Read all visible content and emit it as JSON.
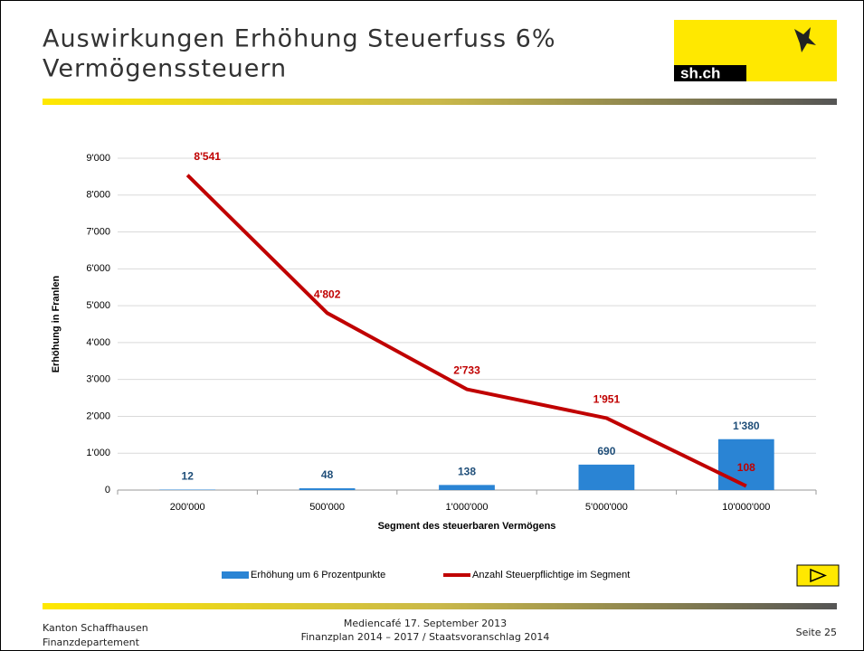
{
  "header": {
    "title_lines": [
      "Auswirkungen Erhöhung Steuerfuss 6%",
      "Vermögenssteuern"
    ],
    "logo": "sh.ch"
  },
  "chart_data": {
    "type": "bar",
    "y_label": "Erhöhung in Franlen",
    "x_label": "Segment des steuerbaren Vermögens",
    "categories": [
      "200'000",
      "500'000",
      "1'000'000",
      "5'000'000",
      "10'000'000"
    ],
    "series": [
      {
        "name": "Erhöhung um 6 Prozentpunkte",
        "type": "bar",
        "color": "#2a84d4",
        "label_color": "#1f4e79",
        "values": [
          12,
          48,
          138,
          690,
          1380
        ],
        "value_labels": [
          "12",
          "48",
          "138",
          "690",
          "1'380"
        ]
      },
      {
        "name": "Anzahl Steuerpflichtige im Segment",
        "type": "line",
        "color": "#c00000",
        "label_color": "#c00000",
        "values": [
          8541,
          4802,
          2733,
          1951,
          108
        ],
        "value_labels": [
          "8'541",
          "4'802",
          "2'733",
          "1'951",
          "108"
        ]
      }
    ],
    "ylim": [
      0,
      9000
    ],
    "yticks": [
      0,
      {
        "value": 1000,
        "label": "1'000"
      },
      {
        "value": 2000,
        "label": "2'000"
      },
      {
        "value": 3000,
        "label": "3'000"
      },
      {
        "value": 4000,
        "label": "4'000"
      },
      {
        "value": 5000,
        "label": "5'000"
      },
      {
        "value": 6000,
        "label": "6'000"
      },
      {
        "value": 7000,
        "label": "7'000"
      },
      {
        "value": 8000,
        "label": "8'000"
      },
      {
        "value": 9000,
        "label": "9'000"
      }
    ],
    "grid": true,
    "legend": "bottom"
  },
  "footer": {
    "left": [
      "Kanton Schaffhausen",
      "Finanzdepartement"
    ],
    "center": [
      "Mediencafé 17. September 2013",
      "Finanzplan 2014 – 2017 / Staatsvoranschlag 2014"
    ],
    "right": "Seite 25"
  }
}
